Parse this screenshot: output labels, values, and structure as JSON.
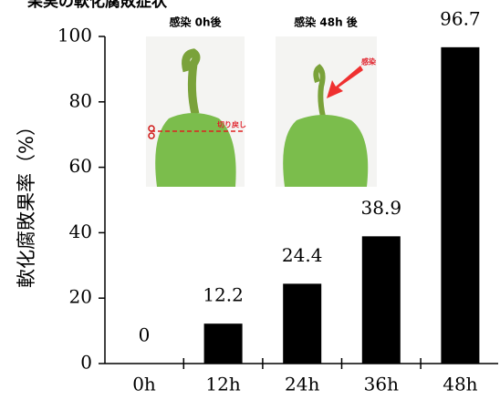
{
  "chart_data": {
    "type": "bar",
    "title": "果実の軟化腐敗症状",
    "y_label": "軟化腐敗果率（%）",
    "categories": [
      "0h",
      "12h",
      "24h",
      "36h",
      "48h"
    ],
    "values": [
      0,
      12.2,
      24.4,
      38.9,
      96.7
    ],
    "color": "#000000",
    "ylim": [
      0,
      100
    ],
    "yticks": [
      0,
      20,
      40,
      60,
      80,
      100
    ],
    "annotations": [
      "感染 0h後",
      "感染 48h 後",
      "切り戻し",
      "感染"
    ]
  }
}
